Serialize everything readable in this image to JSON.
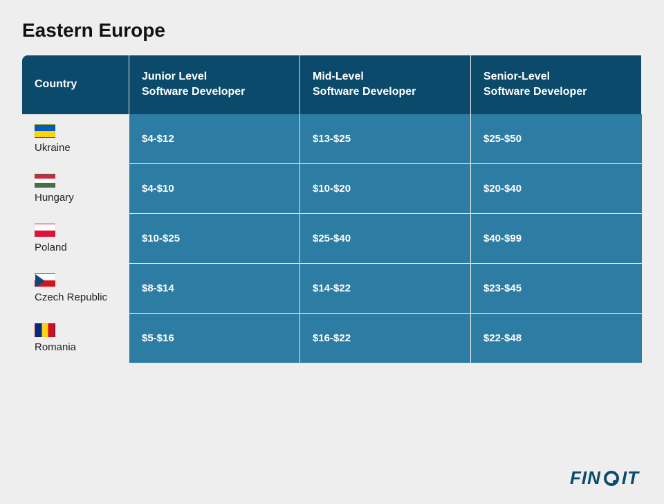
{
  "title": "Eastern Europe",
  "type": "table",
  "colors": {
    "page_background": "#eeeeee",
    "header_background": "#0b4a6a",
    "cell_background": "#2d7ca4",
    "cell_text": "#ffffff",
    "title_text": "#111111",
    "country_text": "#222222",
    "logo_color": "#0b4a6a"
  },
  "columns": [
    "Country",
    "Junior Level\nSoftware Developer",
    "Mid-Level\nSoftware Developer",
    "Senior-Level\nSoftware Developer"
  ],
  "rows": [
    {
      "country": "Ukraine",
      "flag": "ukraine",
      "junior": "$4-$12",
      "mid": "$13-$25",
      "senior": "$25-$50"
    },
    {
      "country": "Hungary",
      "flag": "hungary",
      "junior": "$4-$10",
      "mid": "$10-$20",
      "senior": "$20-$40"
    },
    {
      "country": "Poland",
      "flag": "poland",
      "junior": "$10-$25",
      "mid": "$25-$40",
      "senior": "$40-$99"
    },
    {
      "country": "Czech Republic",
      "flag": "czech",
      "junior": "$8-$14",
      "mid": "$14-$22",
      "senior": "$23-$45"
    },
    {
      "country": "Romania",
      "flag": "romania",
      "junior": "$5-$16",
      "mid": "$16-$22",
      "senior": "$22-$48"
    }
  ],
  "logo": {
    "part1": "FIN",
    "part2": "IT"
  }
}
